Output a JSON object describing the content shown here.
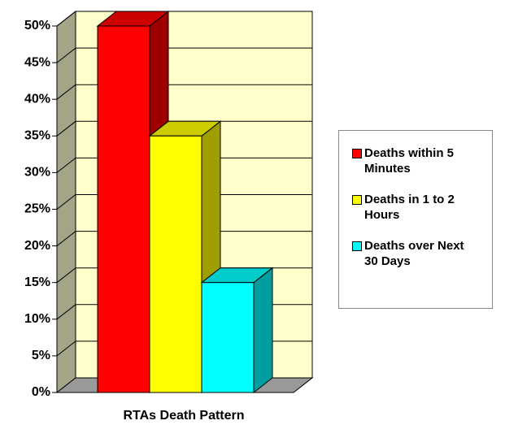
{
  "chart_data": {
    "type": "bar",
    "categories": [
      "RTAs Death Pattern"
    ],
    "series": [
      {
        "name": "Deaths within 5 Minutes",
        "color": "#ff0000",
        "values": [
          50
        ]
      },
      {
        "name": "Deaths in 1 to 2 Hours",
        "color": "#ffff00",
        "values": [
          35
        ]
      },
      {
        "name": "Deaths over Next 30 Days",
        "color": "#00ffff",
        "values": [
          15
        ]
      }
    ],
    "ylim": [
      0,
      50
    ],
    "yticks": [
      {
        "value": 0,
        "label": "0%"
      },
      {
        "value": 5,
        "label": "5%"
      },
      {
        "value": 10,
        "label": "10%"
      },
      {
        "value": 15,
        "label": "15%"
      },
      {
        "value": 20,
        "label": "20%"
      },
      {
        "value": 25,
        "label": "25%"
      },
      {
        "value": 30,
        "label": "30%"
      },
      {
        "value": 35,
        "label": "35%"
      },
      {
        "value": 40,
        "label": "40%"
      },
      {
        "value": 45,
        "label": "45%"
      },
      {
        "value": 50,
        "label": "50%"
      }
    ],
    "grid": true,
    "legend": "right"
  }
}
